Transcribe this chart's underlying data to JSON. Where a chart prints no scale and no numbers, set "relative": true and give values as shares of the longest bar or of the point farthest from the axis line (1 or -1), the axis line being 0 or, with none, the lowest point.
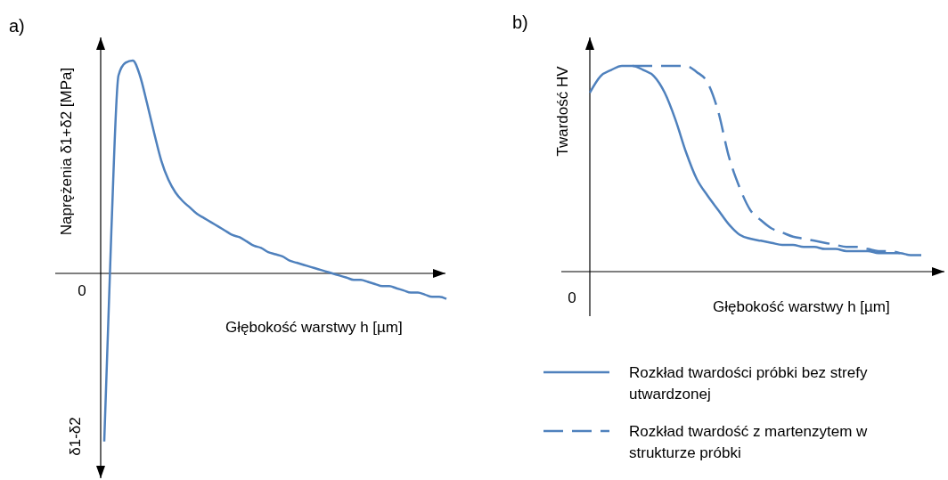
{
  "chart_data": [
    {
      "type": "line",
      "title": "a)",
      "xlabel": "Głębokość warstwy h [µm]",
      "ylabel": "Naprężenia δ1+δ2 [MPa]",
      "relative": true,
      "annotations": [
        "0",
        "δ1-δ2"
      ],
      "categories": [
        null,
        null,
        null,
        null,
        null,
        null,
        null,
        null,
        null,
        null,
        null,
        null,
        null,
        null,
        null,
        null,
        null,
        null,
        null,
        null,
        null,
        null,
        null,
        null,
        null,
        null,
        null,
        null,
        null,
        null,
        null,
        null,
        null,
        null,
        null,
        null,
        null,
        null,
        null,
        null,
        null,
        null,
        null,
        null,
        null,
        null,
        null,
        null,
        null
      ],
      "series": [
        {
          "color": "#4f81bd",
          "line_style": "solid",
          "values": [
            -0.79,
            0.2,
            0.93,
            0.99,
            1,
            0.93,
            0.8,
            0.66,
            0.53,
            0.44,
            0.38,
            0.34,
            0.31,
            0.28,
            0.26,
            0.24,
            0.22,
            0.2,
            0.18,
            0.17,
            0.15,
            0.13,
            0.12,
            0.1,
            0.09,
            0.08,
            0.06,
            0.05,
            0.04,
            0.03,
            0.02,
            0.01,
            0,
            -0.01,
            -0.02,
            -0.03,
            -0.03,
            -0.04,
            -0.05,
            -0.06,
            -0.06,
            -0.07,
            -0.08,
            -0.09,
            -0.09,
            -0.1,
            -0.11,
            -0.11,
            -0.12
          ]
        }
      ]
    },
    {
      "type": "line",
      "title": "b)",
      "xlabel": "Głębokość warstwy h [µm]",
      "ylabel": "Twardość HV",
      "relative": true,
      "legend": "bottom",
      "annotations": [
        "0"
      ],
      "categories": [
        null,
        null,
        null,
        null,
        null,
        null,
        null,
        null,
        null,
        null,
        null,
        null,
        null,
        null,
        null,
        null,
        null,
        null,
        null,
        null,
        null,
        null,
        null,
        null,
        null,
        null,
        null,
        null,
        null,
        null,
        null,
        null
      ],
      "series": [
        {
          "name": "Rozkład twardości próbki bez strefy utwardzonej",
          "color": "#4f81bd",
          "line_style": "solid",
          "values": [
            0.87,
            0.95,
            0.98,
            1,
            1,
            0.98,
            0.95,
            0.87,
            0.74,
            0.58,
            0.45,
            0.37,
            0.3,
            0.23,
            0.18,
            0.16,
            0.15,
            0.14,
            0.13,
            0.13,
            0.12,
            0.12,
            0.11,
            0.11,
            0.1,
            0.1,
            0.1,
            0.09,
            0.09,
            0.09,
            0.08,
            0.08
          ]
        },
        {
          "name": "Rozkład twardość z martenzytem w strukturze próbki",
          "color": "#4f81bd",
          "line_style": "dashed",
          "values": [
            null,
            null,
            null,
            null,
            1,
            1,
            1,
            1,
            1,
            1,
            0.97,
            0.92,
            0.78,
            0.56,
            0.41,
            0.3,
            0.25,
            0.21,
            0.19,
            0.17,
            0.16,
            0.15,
            0.14,
            0.13,
            0.12,
            0.12,
            0.11,
            0.1,
            0.1,
            0.09,
            null,
            null
          ]
        }
      ]
    }
  ]
}
